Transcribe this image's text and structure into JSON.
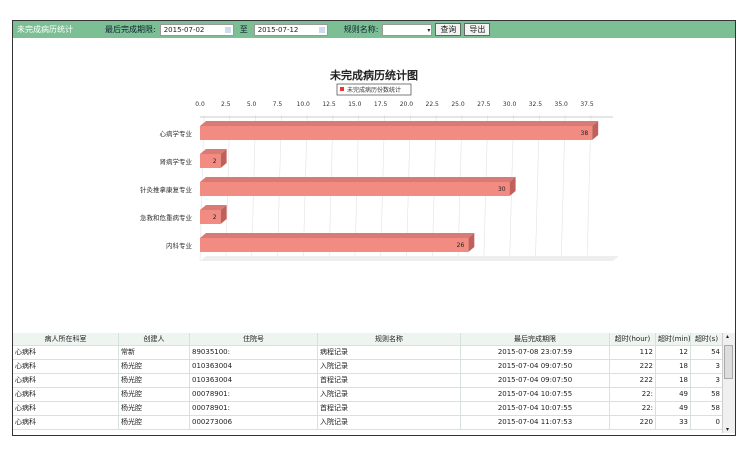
{
  "toolbar": {
    "title": "未完成病历统计",
    "deadline_label": "最后完成期限:",
    "date_from": "2015-07-02",
    "to_label": "至",
    "date_to": "2015-07-12",
    "rule_label": "规则名称:",
    "rule_value": "",
    "query_button": "查询",
    "export_button": "导出"
  },
  "colors": {
    "header": "#7cbf94",
    "bar": "#f28b82"
  },
  "chart_data": {
    "type": "bar",
    "orientation": "horizontal",
    "title": "未完成病历统计图",
    "categories": [
      "心病学专业",
      "肾病学专业",
      "针灸推拿康复专业",
      "急救和危重病专业",
      "内科专业"
    ],
    "series": [
      {
        "name": "未完成病历份数统计",
        "values": [
          38,
          2,
          30,
          2,
          26
        ]
      }
    ],
    "xlim": [
      0,
      40
    ],
    "xticks": [
      "0.0",
      "2.5",
      "5.0",
      "7.5",
      "10.0",
      "12.5",
      "15.0",
      "17.5",
      "20.0",
      "22.5",
      "25.0",
      "27.5",
      "30.0",
      "32.5",
      "35.0",
      "37.5"
    ],
    "grid": true,
    "legend": "top"
  },
  "table": {
    "headers": [
      "病人所在科室",
      "创建人",
      "住院号",
      "规则名称",
      "最后完成期限",
      "超时(hour)",
      "超时(min)",
      "超时(s)"
    ],
    "rows": [
      [
        "心病科",
        "常新",
        "89035100:",
        "病程记录",
        "2015-07-08 23:07:59",
        "112",
        "12",
        "54"
      ],
      [
        "心病科",
        "杨光腔",
        "010363004",
        "入院记录",
        "2015-07-04 09:07:50",
        "222",
        "18",
        "3"
      ],
      [
        "心病科",
        "杨光腔",
        "010363004",
        "首程记录",
        "2015-07-04 09:07:50",
        "222",
        "18",
        "3"
      ],
      [
        "心病科",
        "杨光腔",
        "00078901:",
        "入院记录",
        "2015-07-04 10:07:55",
        "22:",
        "49",
        "58"
      ],
      [
        "心病科",
        "杨光腔",
        "00078901:",
        "首程记录",
        "2015-07-04 10:07:55",
        "22:",
        "49",
        "58"
      ],
      [
        "心病科",
        "杨光腔",
        "000273006",
        "入院记录",
        "2015-07-04 11:07:53",
        "220",
        "33",
        "0"
      ]
    ]
  }
}
